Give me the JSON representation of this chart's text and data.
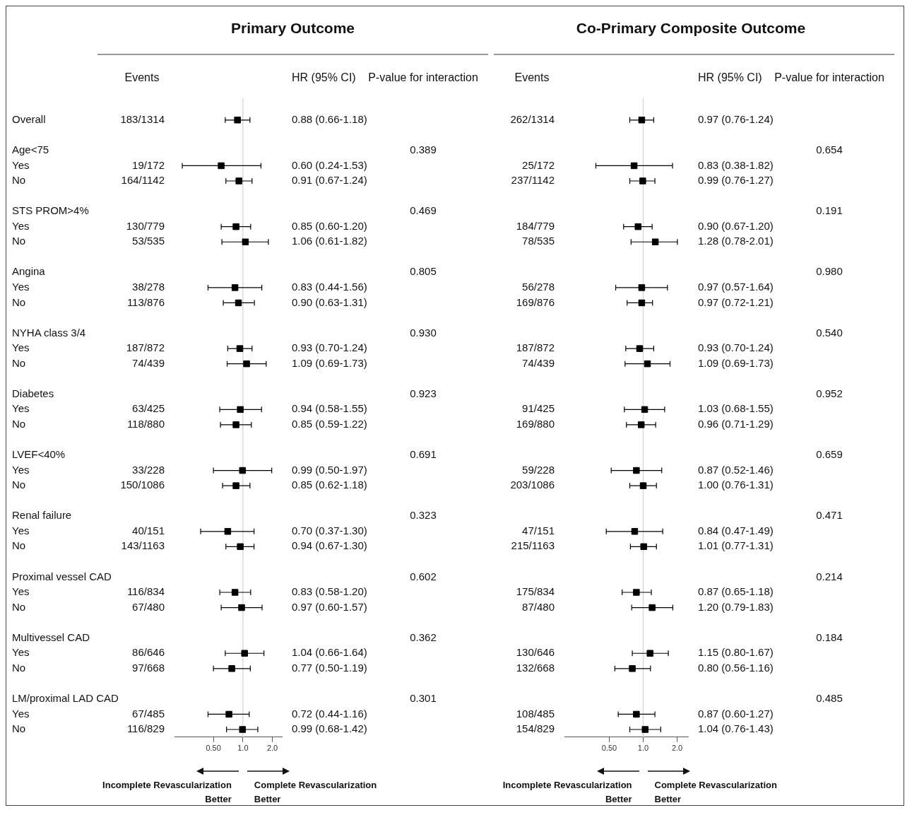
{
  "chart_data": [
    {
      "type": "scatter",
      "title": "Primary Outcome",
      "orientation": "horizontal",
      "log": "x",
      "marker": "square",
      "xlim": [
        0.2,
        2.5
      ],
      "xticks": [
        {
          "value": 0.5,
          "label": "0.50"
        },
        {
          "value": 1,
          "label": "1.0"
        },
        {
          "value": 2,
          "label": "2.0"
        }
      ],
      "categories": [
        "Overall",
        null,
        "Age<75",
        "Yes",
        "No",
        null,
        "STS PROM>4%",
        "Yes",
        "No",
        null,
        "Angina",
        "Yes",
        "No",
        null,
        "NYHA class 3/4",
        "Yes",
        "No",
        null,
        "Diabetes",
        "Yes",
        "No",
        null,
        "LVEF<40%",
        "Yes",
        "No",
        null,
        "Renal failure",
        "Yes",
        "No",
        null,
        "Proximal vessel CAD",
        "Yes",
        "No",
        null,
        "Multivessel CAD",
        "Yes",
        "No",
        null,
        "LM/proximal LAD CAD",
        "Yes",
        "No"
      ],
      "y2_categories": [
        "183/1314",
        null,
        null,
        "19/172",
        "164/1142",
        null,
        null,
        "130/779",
        "53/535",
        null,
        null,
        "38/278",
        "113/876",
        null,
        null,
        "187/872",
        "74/439",
        null,
        null,
        "63/425",
        "118/880",
        null,
        null,
        "33/228",
        "150/1086",
        null,
        null,
        "40/151",
        "143/1163",
        null,
        null,
        "116/834",
        "67/480",
        null,
        null,
        "86/646",
        "97/668",
        null,
        null,
        "67/485",
        "116/829"
      ],
      "series": [
        {
          "color": "#000000",
          "values": [
            0.88,
            null,
            null,
            0.6,
            0.91,
            null,
            null,
            0.85,
            1.06,
            null,
            null,
            0.83,
            0.9,
            null,
            null,
            0.93,
            1.09,
            null,
            null,
            0.94,
            0.85,
            null,
            null,
            0.99,
            0.85,
            null,
            null,
            0.7,
            0.94,
            null,
            null,
            0.83,
            0.97,
            null,
            null,
            1.04,
            0.77,
            null,
            null,
            0.72,
            0.99
          ],
          "errors": [
            [
              0.66,
              1.18
            ],
            null,
            null,
            [
              0.24,
              1.53
            ],
            [
              0.67,
              1.24
            ],
            null,
            null,
            [
              0.6,
              1.2
            ],
            [
              0.61,
              1.82
            ],
            null,
            null,
            [
              0.44,
              1.56
            ],
            [
              0.63,
              1.31
            ],
            null,
            null,
            [
              0.7,
              1.24
            ],
            [
              0.69,
              1.73
            ],
            null,
            null,
            [
              0.58,
              1.55
            ],
            [
              0.59,
              1.22
            ],
            null,
            null,
            [
              0.5,
              1.97
            ],
            [
              0.62,
              1.18
            ],
            null,
            null,
            [
              0.37,
              1.3
            ],
            [
              0.67,
              1.3
            ],
            null,
            null,
            [
              0.58,
              1.2
            ],
            [
              0.6,
              1.57
            ],
            null,
            null,
            [
              0.66,
              1.64
            ],
            [
              0.5,
              1.19
            ],
            null,
            null,
            [
              0.44,
              1.16
            ],
            [
              0.68,
              1.42
            ]
          ],
          "value_labels": [
            "0.88 (0.66-1.18)",
            null,
            null,
            "0.60 (0.24-1.53)",
            "0.91 (0.67-1.24)",
            null,
            null,
            "0.85 (0.60-1.20)",
            "1.06 (0.61-1.82)",
            null,
            null,
            "0.83 (0.44-1.56)",
            "0.90 (0.63-1.31)",
            null,
            null,
            "0.93 (0.70-1.24)",
            "1.09 (0.69-1.73)",
            null,
            null,
            "0.94 (0.58-1.55)",
            "0.85 (0.59-1.22)",
            null,
            null,
            "0.99 (0.50-1.97)",
            "0.85 (0.62-1.18)",
            null,
            null,
            "0.70 (0.37-1.30)",
            "0.94 (0.67-1.30)",
            null,
            null,
            "0.83 (0.58-1.20)",
            "0.97 (0.60-1.57)",
            null,
            null,
            "1.04 (0.66-1.64)",
            "0.77 (0.50-1.19)",
            null,
            null,
            "0.72 (0.44-1.16)",
            "0.99 (0.68-1.42)"
          ]
        }
      ],
      "ref_lines": [
        {
          "axis": "x",
          "value": 1,
          "color": "#d9d9d9"
        }
      ],
      "annotations": [
        "Events",
        "HR (95% CI)",
        "P-value for interaction",
        "Incomplete Revascularization Better",
        "Complete Revascularization Better",
        "0.389",
        "0.469",
        "0.805",
        "0.930",
        "0.923",
        "0.691",
        "0.323",
        "0.602",
        "0.362",
        "0.301"
      ]
    },
    {
      "type": "scatter",
      "title": "Co-Primary Composite Outcome",
      "orientation": "horizontal",
      "log": "x",
      "marker": "square",
      "tick_labels": "x",
      "xlim": [
        0.2,
        2.5
      ],
      "xticks": [
        {
          "value": 0.5,
          "label": "0.50"
        },
        {
          "value": 1,
          "label": "1.0"
        },
        {
          "value": 2,
          "label": "2.0"
        }
      ],
      "categories": [
        null,
        null,
        null,
        null,
        null,
        null,
        null,
        null,
        null,
        null,
        null,
        null,
        null,
        null,
        null,
        null,
        null,
        null,
        null,
        null,
        null,
        null,
        null,
        null,
        null,
        null,
        null,
        null,
        null,
        null,
        null,
        null,
        null,
        null,
        null,
        null,
        null,
        null,
        null,
        null,
        null
      ],
      "y2_categories": [
        "262/1314",
        null,
        null,
        "25/172",
        "237/1142",
        null,
        null,
        "184/779",
        "78/535",
        null,
        null,
        "56/278",
        "169/876",
        null,
        null,
        "187/872",
        "74/439",
        null,
        null,
        "91/425",
        "169/880",
        null,
        null,
        "59/228",
        "203/1086",
        null,
        null,
        "47/151",
        "215/1163",
        null,
        null,
        "175/834",
        "87/480",
        null,
        null,
        "130/646",
        "132/668",
        null,
        null,
        "108/485",
        "154/829"
      ],
      "series": [
        {
          "color": "#000000",
          "values": [
            0.97,
            null,
            null,
            0.83,
            0.99,
            null,
            null,
            0.9,
            1.28,
            null,
            null,
            0.97,
            0.97,
            null,
            null,
            0.93,
            1.09,
            null,
            null,
            1.03,
            0.96,
            null,
            null,
            0.87,
            1.0,
            null,
            null,
            0.84,
            1.01,
            null,
            null,
            0.87,
            1.2,
            null,
            null,
            1.15,
            0.8,
            null,
            null,
            0.87,
            1.04
          ],
          "errors": [
            [
              0.76,
              1.24
            ],
            null,
            null,
            [
              0.38,
              1.82
            ],
            [
              0.76,
              1.27
            ],
            null,
            null,
            [
              0.67,
              1.2
            ],
            [
              0.78,
              2.01
            ],
            null,
            null,
            [
              0.57,
              1.64
            ],
            [
              0.72,
              1.21
            ],
            null,
            null,
            [
              0.7,
              1.24
            ],
            [
              0.69,
              1.73
            ],
            null,
            null,
            [
              0.68,
              1.55
            ],
            [
              0.71,
              1.29
            ],
            null,
            null,
            [
              0.52,
              1.46
            ],
            [
              0.76,
              1.31
            ],
            null,
            null,
            [
              0.47,
              1.49
            ],
            [
              0.77,
              1.31
            ],
            null,
            null,
            [
              0.65,
              1.18
            ],
            [
              0.79,
              1.83
            ],
            null,
            null,
            [
              0.8,
              1.67
            ],
            [
              0.56,
              1.16
            ],
            null,
            null,
            [
              0.6,
              1.27
            ],
            [
              0.76,
              1.43
            ]
          ],
          "value_labels": [
            "0.97 (0.76-1.24)",
            null,
            null,
            "0.83 (0.38-1.82)",
            "0.99 (0.76-1.27)",
            null,
            null,
            "0.90 (0.67-1.20)",
            "1.28 (0.78-2.01)",
            null,
            null,
            "0.97 (0.57-1.64)",
            "0.97 (0.72-1.21)",
            null,
            null,
            "0.93 (0.70-1.24)",
            "1.09 (0.69-1.73)",
            null,
            null,
            "1.03 (0.68-1.55)",
            "0.96 (0.71-1.29)",
            null,
            null,
            "0.87 (0.52-1.46)",
            "1.00 (0.76-1.31)",
            null,
            null,
            "0.84 (0.47-1.49)",
            "1.01 (0.77-1.31)",
            null,
            null,
            "0.87 (0.65-1.18)",
            "1.20 (0.79-1.83)",
            null,
            null,
            "1.15 (0.80-1.67)",
            "0.80 (0.56-1.16)",
            null,
            null,
            "0.87 (0.60-1.27)",
            "1.04 (0.76-1.43)"
          ]
        }
      ],
      "ref_lines": [
        {
          "axis": "x",
          "value": 1,
          "color": "#d9d9d9"
        }
      ],
      "annotations": [
        "Events",
        "HR (95% CI)",
        "P-value for interaction",
        "Incomplete Revascularization Better",
        "Complete Revascularization Better",
        "0.654",
        "0.191",
        "0.980",
        "0.540",
        "0.952",
        "0.659",
        "0.471",
        "0.214",
        "0.184",
        "0.485"
      ]
    }
  ]
}
